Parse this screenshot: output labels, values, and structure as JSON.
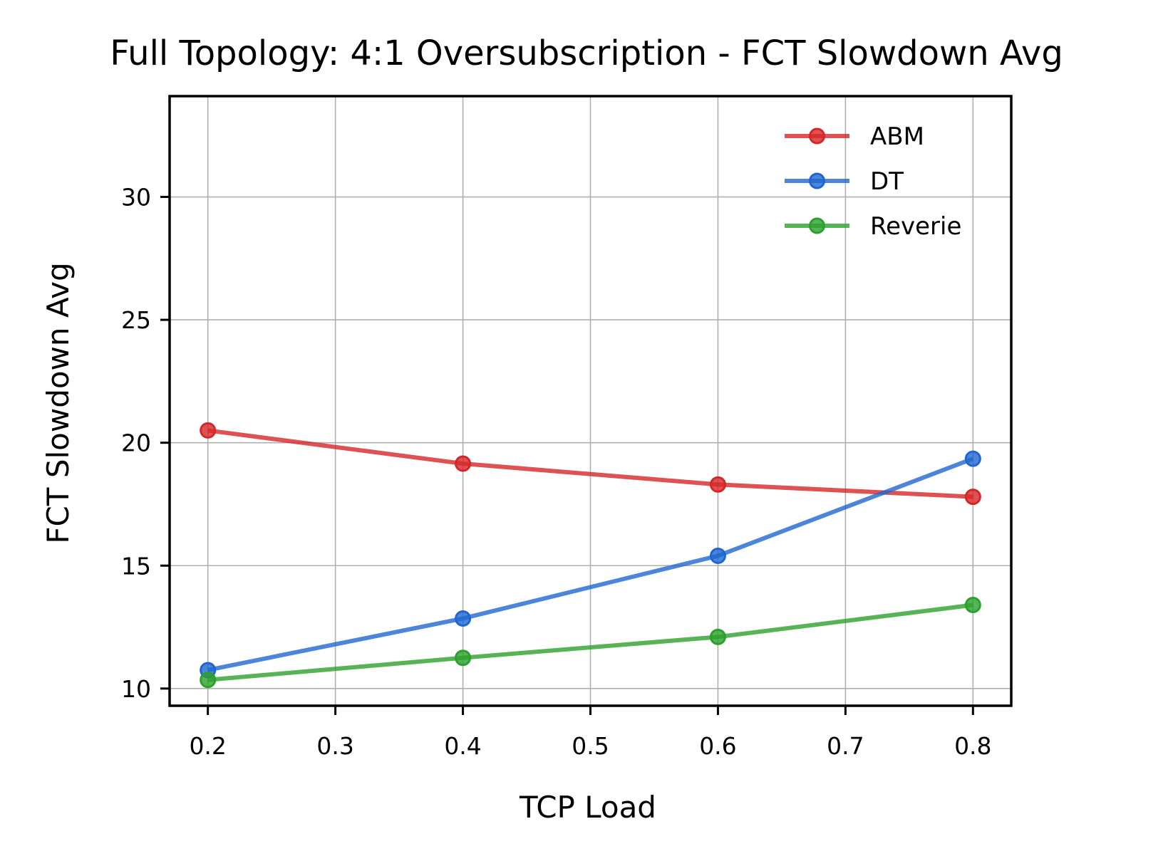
{
  "chart_data": {
    "type": "line",
    "title": "Full Topology: 4:1 Oversubscription - FCT Slowdown Avg",
    "xlabel": "TCP Load",
    "ylabel": "FCT Slowdown Avg",
    "x": [
      0.2,
      0.4,
      0.6,
      0.8
    ],
    "xlim": [
      0.17,
      0.83
    ],
    "ylim": [
      9.3,
      34.1
    ],
    "xticks": [
      0.2,
      0.3,
      0.4,
      0.5,
      0.6,
      0.7,
      0.8
    ],
    "xtick_labels": [
      "0.2",
      "0.3",
      "0.4",
      "0.5",
      "0.6",
      "0.7",
      "0.8"
    ],
    "yticks": [
      10,
      15,
      20,
      25,
      30
    ],
    "ytick_labels": [
      "10",
      "15",
      "20",
      "25",
      "30"
    ],
    "grid": true,
    "legend_position": "top-right",
    "series": [
      {
        "name": "ABM",
        "color": "#d62728",
        "values": [
          20.5,
          19.15,
          18.3,
          17.8
        ]
      },
      {
        "name": "DT",
        "color": "#1f66d1",
        "values": [
          10.75,
          12.85,
          15.4,
          19.35
        ]
      },
      {
        "name": "Reverie",
        "color": "#2ca02c",
        "values": [
          10.35,
          11.25,
          12.1,
          13.4
        ]
      }
    ]
  }
}
